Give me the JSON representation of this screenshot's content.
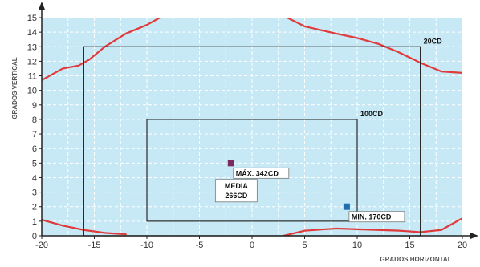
{
  "chart_data": {
    "type": "line",
    "xlabel": "GRADOS HORIZONTAL",
    "ylabel": "GRADOS VERTICAL",
    "xlim": [
      -20,
      20
    ],
    "ylim": [
      0,
      15
    ],
    "x_ticks": [
      -20,
      -15,
      -10,
      -5,
      0,
      5,
      10,
      15,
      20
    ],
    "y_ticks": [
      0,
      1,
      2,
      3,
      4,
      5,
      6,
      7,
      8,
      9,
      10,
      11,
      12,
      13,
      14,
      15
    ],
    "grid": true,
    "colors": {
      "plot_bg": "#c7e8f5",
      "grid": "#ffffff",
      "contour": "#e03a3a",
      "box": "#2a2a2a",
      "max_marker": "#7a2a5e",
      "min_marker": "#1f6fb2",
      "axis": "#222222"
    },
    "rectangles": [
      {
        "label": "20CD",
        "x": [
          -16,
          16
        ],
        "y": [
          0,
          13
        ]
      },
      {
        "label": "100CD",
        "x": [
          -10,
          10
        ],
        "y": [
          1,
          8
        ]
      }
    ],
    "series": [
      {
        "points": [
          [
            -20,
            10.7
          ],
          [
            -19,
            11.1
          ],
          [
            -18,
            11.5
          ],
          [
            -16.5,
            11.7
          ],
          [
            -15.5,
            12.1
          ],
          [
            -14,
            13
          ],
          [
            -12,
            13.9
          ],
          [
            -10,
            14.5
          ],
          [
            -8,
            15.3
          ]
        ]
      },
      {
        "points": [
          [
            2.5,
            15.3
          ],
          [
            5,
            14.4
          ],
          [
            8,
            13.9
          ],
          [
            10,
            13.6
          ],
          [
            12,
            13.2
          ],
          [
            14,
            12.6
          ],
          [
            16,
            11.9
          ],
          [
            18,
            11.3
          ],
          [
            20,
            11.2
          ]
        ]
      },
      {
        "points": [
          [
            -20,
            1.1
          ],
          [
            -18,
            0.7
          ],
          [
            -16,
            0.4
          ],
          [
            -14,
            0.2
          ],
          [
            -12,
            0.1
          ]
        ]
      },
      {
        "points": [
          [
            3,
            0
          ],
          [
            5,
            0.35
          ],
          [
            8,
            0.5
          ],
          [
            10,
            0.45
          ],
          [
            12,
            0.4
          ],
          [
            14,
            0.35
          ],
          [
            16,
            0.25
          ],
          [
            18,
            0.4
          ],
          [
            20,
            1.2
          ]
        ]
      }
    ],
    "annotations": [
      {
        "label": "MÁX. 342CD",
        "x": -2,
        "y": 5,
        "marker": "max"
      },
      {
        "label": "MIN. 170CD",
        "x": 9,
        "y": 2,
        "marker": "min"
      },
      {
        "label_lines": [
          "MEDIA",
          "266CD"
        ],
        "x": -1.5,
        "y": 3.1
      }
    ]
  }
}
